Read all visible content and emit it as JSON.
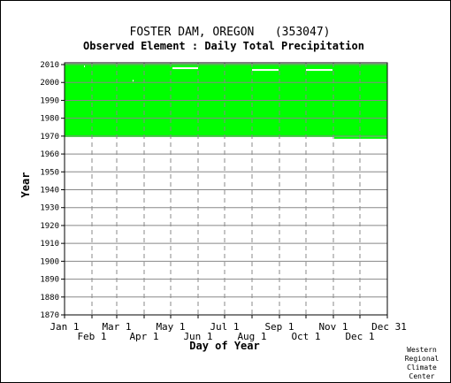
{
  "chart_data": {
    "type": "heatmap",
    "title": "FOSTER DAM, OREGON   (353047)",
    "subtitle": "Observed Element : Daily Total Precipitation",
    "xlabel": "Day of Year",
    "ylabel": "Year",
    "xlim": [
      1,
      366
    ],
    "ylim": [
      1870,
      2011
    ],
    "y_ticks": [
      1870,
      1880,
      1890,
      1900,
      1910,
      1920,
      1930,
      1940,
      1950,
      1960,
      1970,
      1980,
      1990,
      2000,
      2010
    ],
    "x_ticks_top": [
      {
        "label": "Jan 1",
        "day": 1
      },
      {
        "label": "Mar 1",
        "day": 60
      },
      {
        "label": "May 1",
        "day": 121
      },
      {
        "label": "Jul 1",
        "day": 182
      },
      {
        "label": "Sep 1",
        "day": 244
      },
      {
        "label": "Nov 1",
        "day": 305
      },
      {
        "label": "Dec 31",
        "day": 366
      }
    ],
    "x_ticks_bottom": [
      {
        "label": "Feb 1",
        "day": 32
      },
      {
        "label": "Apr 1",
        "day": 91
      },
      {
        "label": "Jun 1",
        "day": 152
      },
      {
        "label": "Aug 1",
        "day": 213
      },
      {
        "label": "Oct 1",
        "day": 274
      },
      {
        "label": "Dec 1",
        "day": 335
      }
    ],
    "grid": true,
    "data_color": "#00ff00",
    "record_start": {
      "year": 1969,
      "day_start": 1,
      "day_end": 366,
      "full_years_from": 1970,
      "partial_start_day": 306
    },
    "record_end": 2010,
    "missing": [
      {
        "year": 2008,
        "day_start": 123,
        "day_end": 152
      },
      {
        "year": 2007,
        "day_start": 213,
        "day_end": 243
      },
      {
        "year": 2007,
        "day_start": 274,
        "day_end": 304
      },
      {
        "year": 2009,
        "day_start": 23,
        "day_end": 24
      },
      {
        "year": 2001,
        "day_start": 78,
        "day_end": 79
      }
    ]
  },
  "credit": [
    "Western",
    "Regional",
    "Climate",
    "Center"
  ],
  "colors": {
    "data": "#00ff00",
    "grid": "#888888",
    "missing": "#ffffff"
  }
}
